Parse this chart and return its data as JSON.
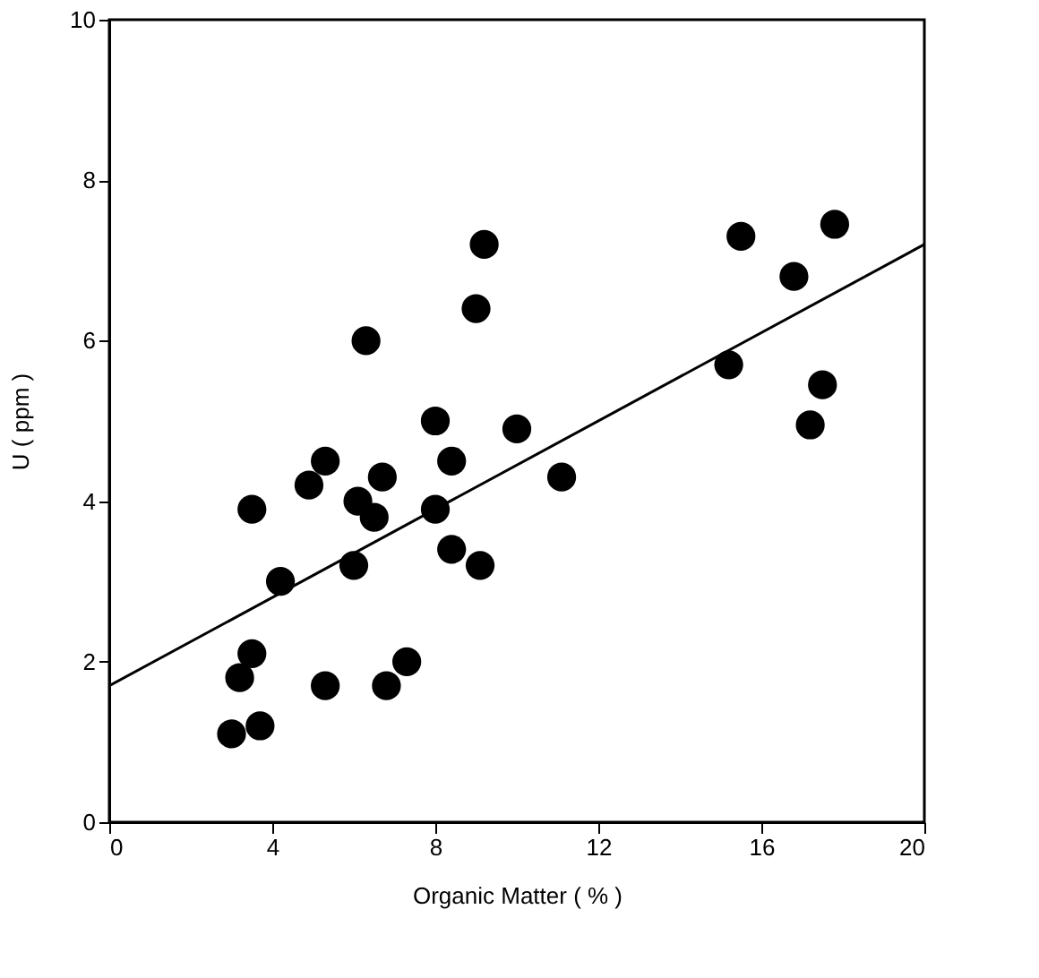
{
  "chart_data": {
    "type": "scatter",
    "xlabel": "Organic Matter  ( % )",
    "ylabel": "U ( ppm )",
    "xlim": [
      0,
      20
    ],
    "ylim": [
      0,
      10
    ],
    "xticks": [
      0,
      4,
      8,
      12,
      16,
      20
    ],
    "yticks": [
      0,
      2,
      4,
      6,
      8,
      10
    ],
    "grid": false,
    "marker": "circle",
    "series": [
      {
        "type": "scatter",
        "color": "#000000",
        "x": [
          3.0,
          3.7,
          3.2,
          3.5,
          3.5,
          4.2,
          4.9,
          5.3,
          5.3,
          6.3,
          6.1,
          6.0,
          6.5,
          6.7,
          6.8,
          7.3,
          8.0,
          8.0,
          8.4,
          8.4,
          9.0,
          9.1,
          9.2,
          10.0,
          11.1,
          15.2,
          15.5,
          16.8,
          17.2,
          17.5,
          17.8
        ],
        "values": [
          1.1,
          1.2,
          1.8,
          2.1,
          3.9,
          3.0,
          4.2,
          4.5,
          1.7,
          6.0,
          4.0,
          3.2,
          3.8,
          4.3,
          1.7,
          2.0,
          5.0,
          3.9,
          4.5,
          3.4,
          6.4,
          3.2,
          7.2,
          4.9,
          4.3,
          5.7,
          7.3,
          6.8,
          4.95,
          5.45,
          7.45
        ]
      },
      {
        "type": "line",
        "marker": "none",
        "color": "#000000",
        "x": [
          0,
          20
        ],
        "values": [
          1.7,
          7.2
        ]
      }
    ]
  }
}
